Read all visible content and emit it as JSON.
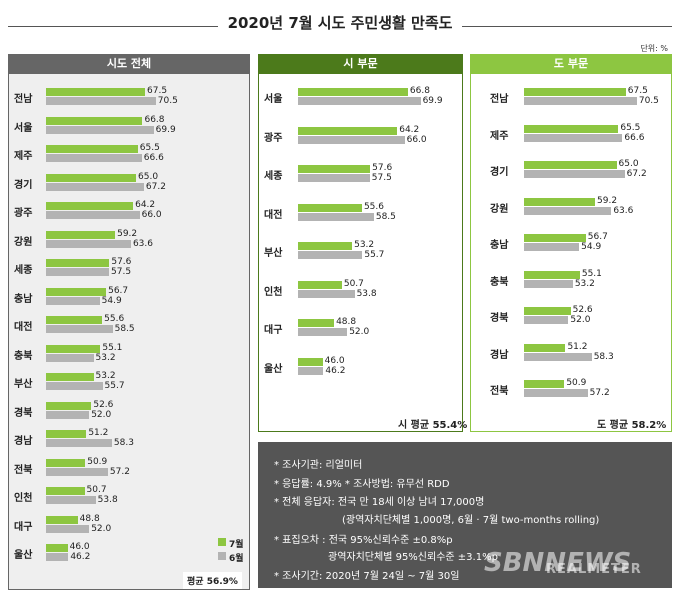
{
  "title": "2020년 7월 시도 주민생활 만족도",
  "unit": "단위: %",
  "legend": {
    "july": "7월",
    "june": "6월"
  },
  "colors": {
    "july": "#8dc641",
    "june": "#b3b3b3",
    "si_header": "#4c7a1b",
    "do_header": "#8dc641",
    "total_header": "#666666"
  },
  "chart_data": [
    {
      "type": "bar",
      "title": "시도 전체",
      "series": [
        {
          "name": "7월"
        },
        {
          "name": "6월"
        }
      ],
      "rows": [
        {
          "label": "전남",
          "july": 67.5,
          "june": 70.5
        },
        {
          "label": "서울",
          "july": 66.8,
          "june": 69.9
        },
        {
          "label": "제주",
          "july": 65.5,
          "june": 66.6
        },
        {
          "label": "경기",
          "july": 65.0,
          "june": 67.2
        },
        {
          "label": "광주",
          "july": 64.2,
          "june": 66.0
        },
        {
          "label": "강원",
          "july": 59.2,
          "june": 63.6
        },
        {
          "label": "세종",
          "july": 57.6,
          "june": 57.5
        },
        {
          "label": "충남",
          "july": 56.7,
          "june": 54.9
        },
        {
          "label": "대전",
          "july": 55.6,
          "june": 58.5
        },
        {
          "label": "충북",
          "july": 55.1,
          "june": 53.2
        },
        {
          "label": "부산",
          "july": 53.2,
          "june": 55.7
        },
        {
          "label": "경북",
          "july": 52.6,
          "june": 52.0
        },
        {
          "label": "경남",
          "july": 51.2,
          "june": 58.3
        },
        {
          "label": "전북",
          "july": 50.9,
          "june": 57.2
        },
        {
          "label": "인천",
          "july": 50.7,
          "june": 53.8
        },
        {
          "label": "대구",
          "july": 48.8,
          "june": 52.0
        },
        {
          "label": "울산",
          "july": 46.0,
          "june": 46.2
        }
      ],
      "average": "평균 56.9%"
    },
    {
      "type": "bar",
      "title": "시 부문",
      "rows": [
        {
          "label": "서울",
          "july": 66.8,
          "june": 69.9
        },
        {
          "label": "광주",
          "july": 64.2,
          "june": 66.0
        },
        {
          "label": "세종",
          "july": 57.6,
          "june": 57.5
        },
        {
          "label": "대전",
          "july": 55.6,
          "june": 58.5
        },
        {
          "label": "부산",
          "july": 53.2,
          "june": 55.7
        },
        {
          "label": "인천",
          "july": 50.7,
          "june": 53.8
        },
        {
          "label": "대구",
          "july": 48.8,
          "june": 52.0
        },
        {
          "label": "울산",
          "july": 46.0,
          "june": 46.2
        }
      ],
      "average": "시 평균 55.4%"
    },
    {
      "type": "bar",
      "title": "도 부문",
      "rows": [
        {
          "label": "전남",
          "july": 67.5,
          "june": 70.5
        },
        {
          "label": "제주",
          "july": 65.5,
          "june": 66.6
        },
        {
          "label": "경기",
          "july": 65.0,
          "june": 67.2
        },
        {
          "label": "강원",
          "july": 59.2,
          "june": 63.6
        },
        {
          "label": "충남",
          "july": 56.7,
          "june": 54.9
        },
        {
          "label": "충북",
          "july": 55.1,
          "june": 53.2
        },
        {
          "label": "경북",
          "july": 52.6,
          "june": 52.0
        },
        {
          "label": "경남",
          "july": 51.2,
          "june": 58.3
        },
        {
          "label": "전북",
          "july": 50.9,
          "june": 57.2
        }
      ],
      "average": "도 평균 58.2%"
    }
  ],
  "notes": [
    "* 조사기관: 리얼미터",
    "* 응답률: 4.9% * 조사방법: 유무선 RDD",
    "* 전체 응답자: 전국 만 18세 이상 남녀 17,000명",
    "(광역자치단체별 1,000명, 6월 · 7월 two-months rolling)",
    "* 표집오차 : 전국 95%신뢰수준 ±0.8%p",
    "광역자치단체별 95%신뢰수준 ±3.1%p",
    "* 조사기간: 2020년 7월 24일 ~ 7월 30일"
  ],
  "watermark": {
    "brand": "SBNNEWS",
    "sub": "REALMETER"
  }
}
